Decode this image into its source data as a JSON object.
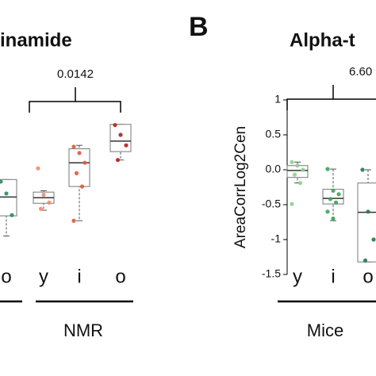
{
  "panel_letter": "B",
  "chart_data": [
    {
      "type": "box",
      "title": "inamide",
      "annotation": "0.0142",
      "group_label": "NMR",
      "categories": [
        "o",
        "y",
        "i",
        "o"
      ],
      "ylim": [
        -1.5,
        1
      ],
      "boxes": [
        {
          "min": -0.95,
          "q1": -0.66,
          "median": -0.39,
          "q3": -0.14,
          "max": -0.14,
          "points": [
            -0.17,
            -0.34,
            -0.65
          ],
          "color": "#2e8b57"
        },
        {
          "min": -0.58,
          "q1": -0.48,
          "median": -0.4,
          "q3": -0.32,
          "max": -0.3,
          "points": [
            0.02,
            -0.36,
            -0.47,
            -0.56
          ],
          "color": "#f08a6a"
        },
        {
          "min": -0.73,
          "q1": -0.24,
          "median": 0.1,
          "q3": 0.3,
          "max": 0.35,
          "points": [
            0.33,
            0.24,
            0.1,
            -0.05,
            -0.24,
            -0.73
          ],
          "color": "#e0583a"
        },
        {
          "min": 0.14,
          "q1": 0.26,
          "median": 0.41,
          "q3": 0.65,
          "max": 0.65,
          "points": [
            0.64,
            0.5,
            0.35,
            0.14
          ],
          "color": "#b0201a"
        }
      ]
    },
    {
      "type": "box",
      "title": "Alpha-t",
      "annotation": "6.60",
      "group_label": "Mice",
      "y_label": "AreaCorrLog2Cen",
      "categories": [
        "y",
        "i",
        "o"
      ],
      "ylim": [
        -1.5,
        1
      ],
      "yticks": [
        1,
        0.5,
        {
          "value": 0,
          "label": "0.0"
        },
        -0.5,
        -1,
        -1.5
      ],
      "boxes": [
        {
          "min": -0.19,
          "q1": -0.11,
          "median": -0.01,
          "q3": 0.06,
          "max": 0.11,
          "points": [
            0.11,
            0.06,
            0.0,
            -0.07,
            -0.19,
            -0.49
          ],
          "color": "#8fcf8f"
        },
        {
          "min": -0.73,
          "q1": -0.49,
          "median": -0.41,
          "q3": -0.28,
          "max": 0.01,
          "points": [
            0.01,
            -0.3,
            -0.35,
            -0.42,
            -0.47,
            -0.6,
            -0.7
          ],
          "color": "#3aa35a"
        },
        {
          "min": -1.32,
          "q1": -1.32,
          "median": -0.61,
          "q3": -0.19,
          "max": 0.0,
          "points": [
            0.0,
            -0.6,
            -1.0,
            -1.3
          ],
          "color": "#1f7a4a"
        }
      ]
    }
  ]
}
